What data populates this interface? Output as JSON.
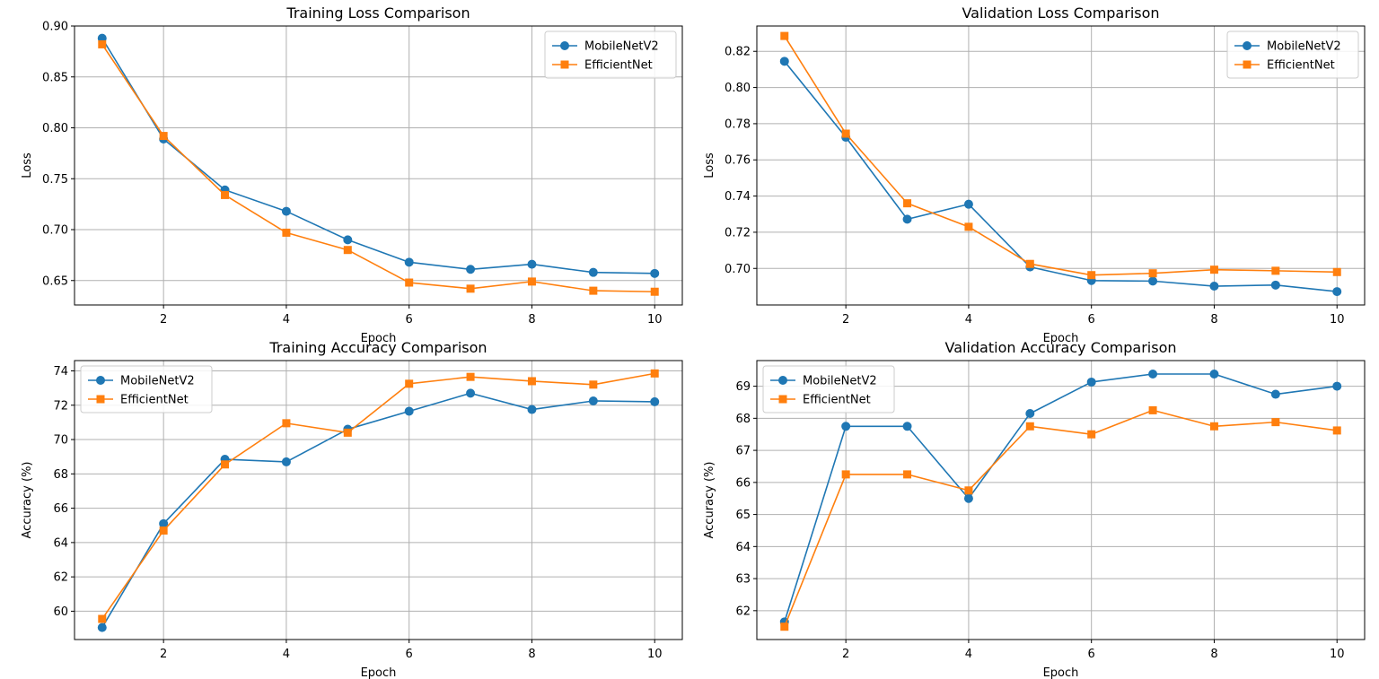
{
  "colors": {
    "MobileNetV2": "#1f77b4",
    "EfficientNet": "#ff7f0e"
  },
  "chart_data": [
    {
      "type": "line",
      "title": "Training Loss Comparison",
      "xlabel": "Epoch",
      "ylabel": "Loss",
      "x": [
        1,
        2,
        3,
        4,
        5,
        6,
        7,
        8,
        9,
        10
      ],
      "xticks": [
        2,
        4,
        6,
        8,
        10
      ],
      "yticks": [
        0.65,
        0.7,
        0.75,
        0.8,
        0.85,
        0.9
      ],
      "ytick_labels": [
        "0.65",
        "0.70",
        "0.75",
        "0.80",
        "0.85",
        "0.90"
      ],
      "xlim": [
        0.55,
        10.45
      ],
      "ylim": [
        0.626,
        0.9
      ],
      "grid": true,
      "legend": "upper right",
      "series": [
        {
          "name": "MobileNetV2",
          "marker": "circle",
          "values": [
            0.888,
            0.789,
            0.739,
            0.718,
            0.69,
            0.668,
            0.661,
            0.666,
            0.658,
            0.657
          ]
        },
        {
          "name": "EfficientNet",
          "marker": "square",
          "values": [
            0.882,
            0.792,
            0.734,
            0.697,
            0.68,
            0.648,
            0.642,
            0.649,
            0.64,
            0.639
          ]
        }
      ]
    },
    {
      "type": "line",
      "title": "Validation Loss Comparison",
      "xlabel": "Epoch",
      "ylabel": "Loss",
      "x": [
        1,
        2,
        3,
        4,
        5,
        6,
        7,
        8,
        9,
        10
      ],
      "xticks": [
        2,
        4,
        6,
        8,
        10
      ],
      "yticks": [
        0.7,
        0.72,
        0.74,
        0.76,
        0.78,
        0.8,
        0.82
      ],
      "ytick_labels": [
        "0.70",
        "0.72",
        "0.74",
        "0.76",
        "0.78",
        "0.80",
        "0.82"
      ],
      "xlim": [
        0.55,
        10.45
      ],
      "ylim": [
        0.6798,
        0.834
      ],
      "grid": true,
      "legend": "upper right",
      "series": [
        {
          "name": "MobileNetV2",
          "marker": "circle",
          "values": [
            0.8145,
            0.7725,
            0.7272,
            0.7355,
            0.7008,
            0.6933,
            0.693,
            0.6902,
            0.6908,
            0.6872
          ]
        },
        {
          "name": "EfficientNet",
          "marker": "square",
          "values": [
            0.8285,
            0.7745,
            0.736,
            0.723,
            0.7025,
            0.6963,
            0.6973,
            0.6993,
            0.6987,
            0.698
          ]
        }
      ]
    },
    {
      "type": "line",
      "title": "Training Accuracy Comparison",
      "xlabel": "Epoch",
      "ylabel": "Accuracy (%)",
      "x": [
        1,
        2,
        3,
        4,
        5,
        6,
        7,
        8,
        9,
        10
      ],
      "xticks": [
        2,
        4,
        6,
        8,
        10
      ],
      "yticks": [
        60,
        62,
        64,
        66,
        68,
        70,
        72,
        74
      ],
      "ytick_labels": [
        "60",
        "62",
        "64",
        "66",
        "68",
        "70",
        "72",
        "74"
      ],
      "xlim": [
        0.55,
        10.45
      ],
      "ylim": [
        58.35,
        74.6
      ],
      "grid": true,
      "legend": "upper left",
      "series": [
        {
          "name": "MobileNetV2",
          "marker": "circle",
          "values": [
            59.05,
            65.1,
            68.85,
            68.7,
            70.6,
            71.65,
            72.7,
            71.75,
            72.25,
            72.2
          ]
        },
        {
          "name": "EfficientNet",
          "marker": "square",
          "values": [
            59.55,
            64.7,
            68.55,
            70.95,
            70.4,
            73.25,
            73.65,
            73.4,
            73.2,
            73.85
          ]
        }
      ]
    },
    {
      "type": "line",
      "title": "Validation Accuracy Comparison",
      "xlabel": "Epoch",
      "ylabel": "Accuracy (%)",
      "x": [
        1,
        2,
        3,
        4,
        5,
        6,
        7,
        8,
        9,
        10
      ],
      "xticks": [
        2,
        4,
        6,
        8,
        10
      ],
      "yticks": [
        62,
        63,
        64,
        65,
        66,
        67,
        68,
        69
      ],
      "ytick_labels": [
        "62",
        "63",
        "64",
        "65",
        "66",
        "67",
        "68",
        "69"
      ],
      "xlim": [
        0.55,
        10.45
      ],
      "ylim": [
        61.1,
        69.8
      ],
      "grid": true,
      "legend": "upper left",
      "series": [
        {
          "name": "MobileNetV2",
          "marker": "circle",
          "values": [
            61.65,
            67.75,
            67.75,
            65.5,
            68.15,
            69.13,
            69.38,
            69.38,
            68.75,
            69.0
          ]
        },
        {
          "name": "EfficientNet",
          "marker": "square",
          "values": [
            61.5,
            66.25,
            66.25,
            65.75,
            67.75,
            67.5,
            68.25,
            67.75,
            67.88,
            67.62
          ]
        }
      ]
    }
  ]
}
